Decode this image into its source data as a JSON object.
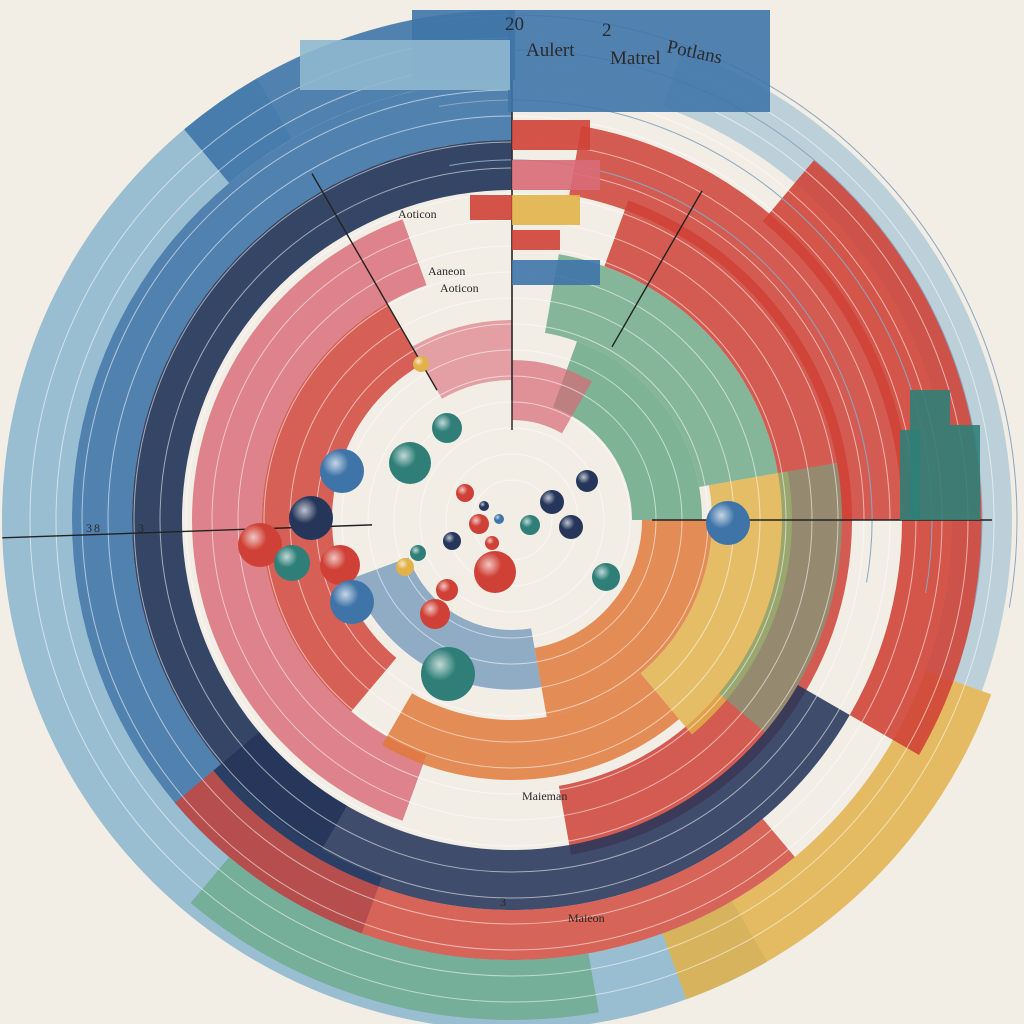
{
  "palette": {
    "background": "#f2eee6",
    "navy": "#25365a",
    "blue": "#3f74a8",
    "teal": "#2f7f78",
    "green": "#6aa886",
    "yellow": "#e2b24a",
    "orange": "#e07a3c",
    "red": "#cf4136",
    "pink": "#d96a76",
    "paleblue": "#8fb8cf"
  },
  "labels": {
    "top_number": "20",
    "top_number_2": "2",
    "top_word_1": "Aulert",
    "top_word_2": "Matrel",
    "top_word_3": "Potlans",
    "left_number_1": "3",
    "left_number_2": "8",
    "left_number_3": "3",
    "center_word_1": "Aoticon",
    "center_word_2": "Aaneon",
    "center_word_3": "Aoticon",
    "bottom_word_1": "Maieman",
    "bottom_word_2": "Maieon",
    "bottom_number": "3"
  }
}
